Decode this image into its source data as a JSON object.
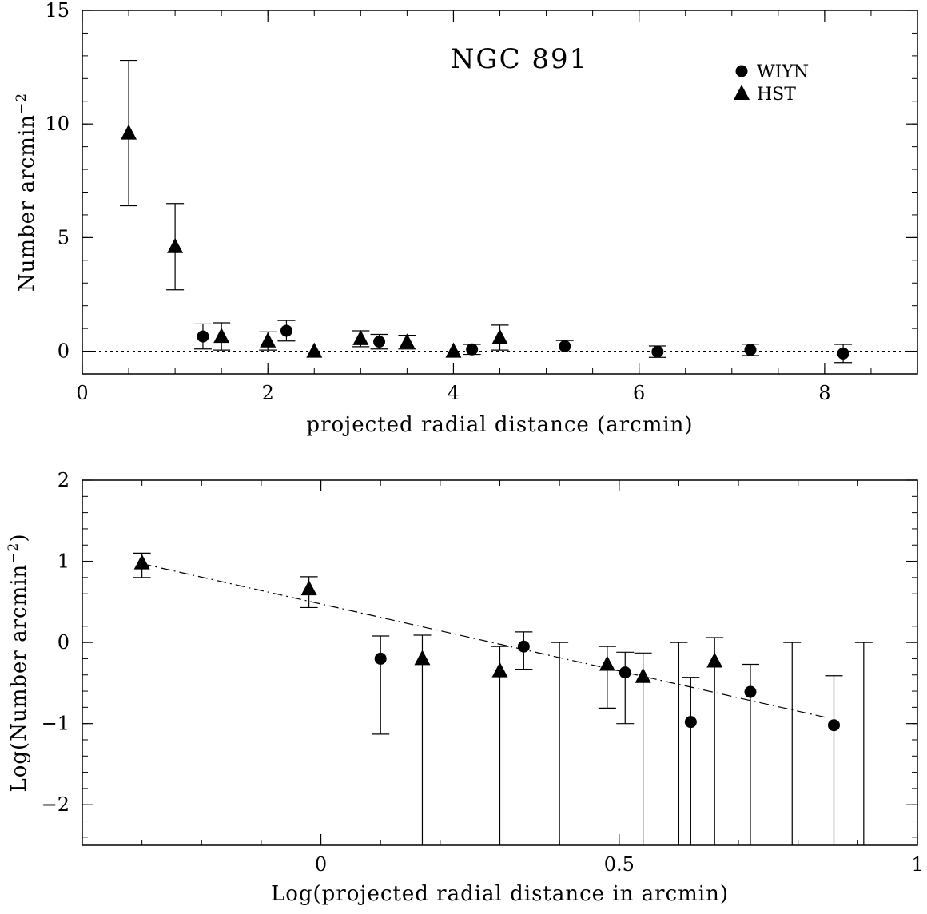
{
  "chart_data": [
    {
      "type": "scatter",
      "title": "NGC 891",
      "xlabel": "projected radial distance (arcmin)",
      "ylabel": "Number arcmin",
      "ylabel_sup": "−2",
      "xlim": [
        0,
        9
      ],
      "ylim": [
        -1,
        15
      ],
      "xticks": [
        0,
        2,
        4,
        6,
        8
      ],
      "xtick_labels": [
        "0",
        "2",
        "4",
        "6",
        "8"
      ],
      "yticks": [
        0,
        5,
        10,
        15
      ],
      "ytick_labels": [
        "0",
        "5",
        "10",
        "15"
      ],
      "grid": false,
      "legend_position": "top-right",
      "reference_line": {
        "y": 0,
        "style": "dotted"
      },
      "series": [
        {
          "name": "WIYN",
          "marker": "circle",
          "points": [
            {
              "x": 1.3,
              "y": 0.65,
              "err_lo": 0.55,
              "err_hi": 0.55
            },
            {
              "x": 2.2,
              "y": 0.9,
              "err_lo": 0.45,
              "err_hi": 0.45
            },
            {
              "x": 3.2,
              "y": 0.42,
              "err_lo": 0.32,
              "err_hi": 0.32
            },
            {
              "x": 4.2,
              "y": 0.08,
              "err_lo": 0.22,
              "err_hi": 0.22
            },
            {
              "x": 5.2,
              "y": 0.22,
              "err_lo": 0.25,
              "err_hi": 0.25
            },
            {
              "x": 6.2,
              "y": -0.02,
              "err_lo": 0.25,
              "err_hi": 0.25
            },
            {
              "x": 7.2,
              "y": 0.06,
              "err_lo": 0.25,
              "err_hi": 0.25
            },
            {
              "x": 8.2,
              "y": -0.1,
              "err_lo": 0.4,
              "err_hi": 0.4
            }
          ]
        },
        {
          "name": "HST",
          "marker": "triangle",
          "points": [
            {
              "x": 0.5,
              "y": 9.6,
              "err_lo": 3.2,
              "err_hi": 3.2
            },
            {
              "x": 1.0,
              "y": 4.6,
              "err_lo": 1.9,
              "err_hi": 1.9
            },
            {
              "x": 1.5,
              "y": 0.65,
              "err_lo": 0.6,
              "err_hi": 0.6
            },
            {
              "x": 2.0,
              "y": 0.45,
              "err_lo": 0.4,
              "err_hi": 0.4
            },
            {
              "x": 2.5,
              "y": 0.0,
              "err_lo": 0.0,
              "err_hi": 0.0
            },
            {
              "x": 3.0,
              "y": 0.55,
              "err_lo": 0.35,
              "err_hi": 0.35
            },
            {
              "x": 3.5,
              "y": 0.4,
              "err_lo": 0.3,
              "err_hi": 0.3
            },
            {
              "x": 4.0,
              "y": 0.0,
              "err_lo": 0.0,
              "err_hi": 0.0
            },
            {
              "x": 4.5,
              "y": 0.6,
              "err_lo": 0.55,
              "err_hi": 0.55
            }
          ]
        }
      ]
    },
    {
      "type": "scatter",
      "title": "",
      "xlabel": "Log(projected radial distance in arcmin)",
      "ylabel": "Log(Number arcmin",
      "ylabel_sup": "−2",
      "ylabel_suffix": ")",
      "xlim": [
        -0.4,
        1.0
      ],
      "ylim": [
        -2.5,
        2
      ],
      "xticks": [
        0,
        0.5,
        1
      ],
      "xtick_labels": [
        "0",
        "0.5",
        "1"
      ],
      "yticks": [
        -2,
        -1,
        0,
        1,
        2
      ],
      "ytick_labels": [
        "−2",
        "−1",
        "0",
        "1",
        "2"
      ],
      "grid": false,
      "fit_line": {
        "x1": -0.3,
        "y1": 0.97,
        "x2": 0.85,
        "y2": -0.93,
        "style": "dash-dot"
      },
      "series": [
        {
          "name": "WIYN",
          "marker": "circle",
          "points": [
            {
              "x": 0.1,
              "y": -0.2,
              "y_lo": -1.13,
              "y_hi": 0.08
            },
            {
              "x": 0.34,
              "y": -0.05,
              "y_lo": -0.33,
              "y_hi": 0.13
            },
            {
              "x": 0.51,
              "y": -0.37,
              "y_lo": -1.0,
              "y_hi": -0.12
            },
            {
              "x": 0.62,
              "y": -0.98,
              "y_lo": null,
              "y_hi": -0.43
            },
            {
              "x": 0.72,
              "y": -0.61,
              "y_lo": null,
              "y_hi": -0.27
            },
            {
              "x": 0.86,
              "y": -1.02,
              "y_lo": null,
              "y_hi": -0.41
            }
          ],
          "upper_only_bars": [
            {
              "x": 0.4,
              "y_hi": 0.0
            },
            {
              "x": 0.6,
              "y_hi": 0.0
            },
            {
              "x": 0.79,
              "y_hi": 0.0
            },
            {
              "x": 0.91,
              "y_hi": 0.0
            }
          ]
        },
        {
          "name": "HST",
          "marker": "triangle",
          "points": [
            {
              "x": -0.3,
              "y": 0.98,
              "y_lo": 0.8,
              "y_hi": 1.1
            },
            {
              "x": -0.02,
              "y": 0.66,
              "y_lo": 0.43,
              "y_hi": 0.81
            },
            {
              "x": 0.17,
              "y": -0.2,
              "y_lo": null,
              "y_hi": 0.09
            },
            {
              "x": 0.3,
              "y": -0.35,
              "y_lo": null,
              "y_hi": -0.05
            },
            {
              "x": 0.48,
              "y": -0.27,
              "y_lo": -0.81,
              "y_hi": -0.05
            },
            {
              "x": 0.54,
              "y": -0.42,
              "y_lo": null,
              "y_hi": -0.13
            },
            {
              "x": 0.66,
              "y": -0.23,
              "y_lo": null,
              "y_hi": 0.06
            }
          ]
        }
      ]
    }
  ]
}
